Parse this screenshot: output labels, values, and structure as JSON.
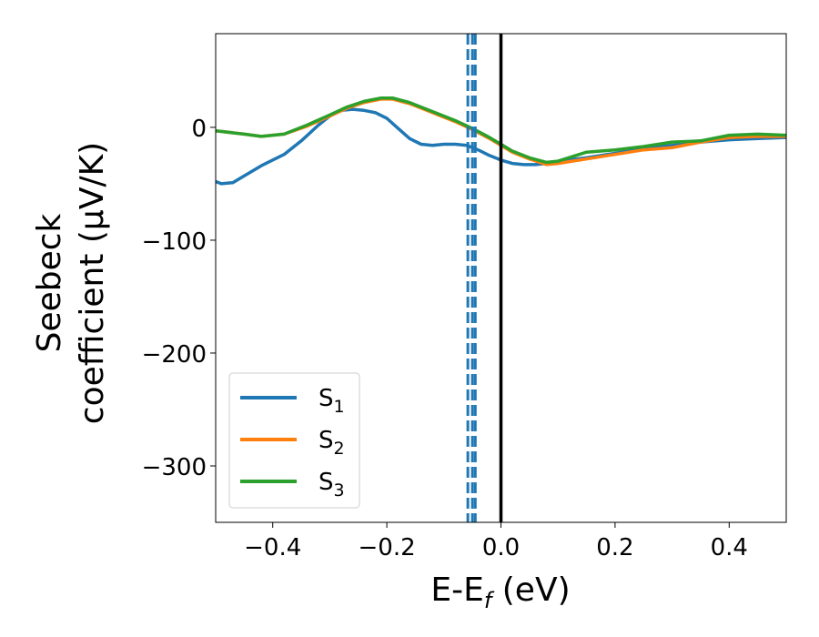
{
  "chart_data": {
    "type": "line",
    "xlabel": "E-E_f (eV)",
    "xlabel_main": "E-E",
    "xlabel_sub": "f",
    "xlabel_tail": " (eV)",
    "ylabel_line1": "Seebeck",
    "ylabel_line2": "coefficient  (μV/K)",
    "xlim": [
      -0.5,
      0.5
    ],
    "ylim": [
      -350,
      83
    ],
    "x_ticks": [
      -0.4,
      -0.2,
      0.0,
      0.2,
      0.4
    ],
    "x_tick_labels": [
      "−0.4",
      "−0.2",
      "0.0",
      "0.2",
      "0.4"
    ],
    "y_ticks": [
      0,
      -100,
      -200,
      -300
    ],
    "y_tick_labels": [
      "0",
      "−100",
      "−200",
      "−300"
    ],
    "grid": false,
    "legend_position": "lower-left",
    "series": [
      {
        "name": "S1",
        "name_main": "S",
        "name_sub": "1",
        "color": "#1f77b4",
        "x": [
          -0.5,
          -0.49,
          -0.47,
          -0.45,
          -0.42,
          -0.38,
          -0.35,
          -0.32,
          -0.3,
          -0.28,
          -0.26,
          -0.24,
          -0.22,
          -0.2,
          -0.18,
          -0.16,
          -0.14,
          -0.12,
          -0.1,
          -0.08,
          -0.06,
          -0.04,
          -0.02,
          0.0,
          0.02,
          0.04,
          0.06,
          0.08,
          0.1,
          0.15,
          0.2,
          0.25,
          0.3,
          0.35,
          0.4,
          0.45,
          0.5
        ],
        "y": [
          -48,
          -50,
          -49,
          -43,
          -34,
          -24,
          -12,
          2,
          10,
          15,
          16,
          15,
          13,
          8,
          -1,
          -10,
          -15,
          -16,
          -15,
          -15,
          -16,
          -20,
          -25,
          -29,
          -32,
          -33,
          -33,
          -32,
          -30,
          -27,
          -23,
          -19,
          -16,
          -13,
          -11,
          -10,
          -9
        ]
      },
      {
        "name": "S2",
        "name_main": "S",
        "name_sub": "2",
        "color": "#ff7f0e",
        "x": [
          -0.5,
          -0.45,
          -0.42,
          -0.38,
          -0.34,
          -0.3,
          -0.27,
          -0.24,
          -0.21,
          -0.19,
          -0.16,
          -0.12,
          -0.08,
          -0.05,
          -0.02,
          0.0,
          0.02,
          0.05,
          0.08,
          0.1,
          0.15,
          0.2,
          0.25,
          0.3,
          0.35,
          0.4,
          0.45,
          0.5
        ],
        "y": [
          -3,
          -6,
          -8,
          -6,
          1,
          10,
          17,
          22,
          25,
          25,
          21,
          13,
          5,
          -2,
          -10,
          -16,
          -22,
          -28,
          -33,
          -32,
          -28,
          -24,
          -20,
          -18,
          -13,
          -9,
          -8,
          -8
        ]
      },
      {
        "name": "S3",
        "name_main": "S",
        "name_sub": "3",
        "color": "#2ca02c",
        "x": [
          -0.5,
          -0.45,
          -0.42,
          -0.38,
          -0.34,
          -0.3,
          -0.27,
          -0.24,
          -0.21,
          -0.19,
          -0.16,
          -0.12,
          -0.08,
          -0.05,
          -0.02,
          0.0,
          0.02,
          0.05,
          0.08,
          0.1,
          0.15,
          0.2,
          0.25,
          0.3,
          0.35,
          0.4,
          0.45,
          0.5
        ],
        "y": [
          -3,
          -6,
          -8,
          -6,
          2,
          11,
          18,
          23,
          26,
          26,
          22,
          14,
          6,
          -1,
          -9,
          -15,
          -21,
          -27,
          -31,
          -30,
          -22,
          -20,
          -17,
          -13,
          -12,
          -7,
          -6,
          -7
        ]
      }
    ],
    "vertical_lines": [
      {
        "x": 0.0,
        "color": "#000000",
        "style": "solid"
      },
      {
        "x": -0.058,
        "color": "#1f77b4",
        "style": "dashed"
      },
      {
        "x": -0.05,
        "color": "#1f77b4",
        "style": "dashed"
      },
      {
        "x": -0.045,
        "color": "#1f77b4",
        "style": "dashed"
      }
    ]
  }
}
